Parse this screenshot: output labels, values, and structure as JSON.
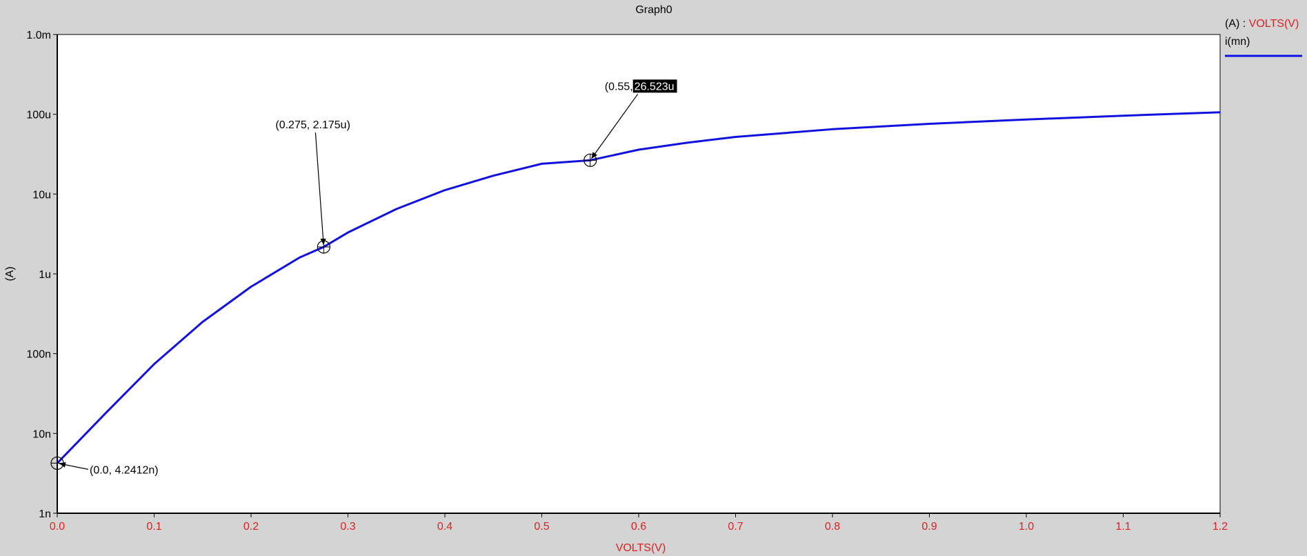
{
  "chart_data": {
    "type": "line",
    "title": "Graph0",
    "xlabel": "VOLTS(V)",
    "ylabel": "(A)",
    "xlim": [
      0,
      1.2
    ],
    "ylim": [
      1e-09,
      0.001
    ],
    "yscale": "log",
    "grid": false,
    "legend_position": "top-right",
    "x_ticks": [
      {
        "value": 0.0,
        "label": "0.0"
      },
      {
        "value": 0.1,
        "label": "0.1"
      },
      {
        "value": 0.2,
        "label": "0.2"
      },
      {
        "value": 0.3,
        "label": "0.3"
      },
      {
        "value": 0.4,
        "label": "0.4"
      },
      {
        "value": 0.5,
        "label": "0.5"
      },
      {
        "value": 0.6,
        "label": "0.6"
      },
      {
        "value": 0.7,
        "label": "0.7"
      },
      {
        "value": 0.8,
        "label": "0.8"
      },
      {
        "value": 0.9,
        "label": "0.9"
      },
      {
        "value": 1.0,
        "label": "1.0"
      },
      {
        "value": 1.1,
        "label": "1.1"
      },
      {
        "value": 1.2,
        "label": "1.2"
      }
    ],
    "y_ticks": [
      {
        "value": 0.001,
        "label": "1.0m"
      },
      {
        "value": 0.0001,
        "label": "100u"
      },
      {
        "value": 1e-05,
        "label": "10u"
      },
      {
        "value": 1e-06,
        "label": "1u"
      },
      {
        "value": 1e-07,
        "label": "100n"
      },
      {
        "value": 1e-08,
        "label": "10n"
      },
      {
        "value": 1e-09,
        "label": "1n"
      }
    ],
    "series": [
      {
        "name": "i(mn)",
        "color": "#1010e0",
        "x": [
          0.0,
          0.05,
          0.1,
          0.15,
          0.2,
          0.25,
          0.275,
          0.3,
          0.35,
          0.4,
          0.45,
          0.5,
          0.55,
          0.6,
          0.65,
          0.7,
          0.8,
          0.9,
          1.0,
          1.1,
          1.2
        ],
        "y": [
          4.2412e-09,
          1.8e-08,
          7.4e-08,
          2.5e-07,
          6.9e-07,
          1.6e-06,
          2.175e-06,
          3.3e-06,
          6.5e-06,
          1.12e-05,
          1.7e-05,
          2.4e-05,
          2.6523e-05,
          3.6e-05,
          4.4e-05,
          5.2e-05,
          6.5e-05,
          7.6e-05,
          8.6e-05,
          9.6e-05,
          0.000106
        ]
      }
    ],
    "legend": {
      "header_prefix": "(A) : ",
      "header_x_unit": "VOLTS(V)",
      "entries": [
        {
          "name": "i(mn)",
          "color": "#1010e0"
        }
      ]
    },
    "annotations": [
      {
        "x": 0.0,
        "y": 4.2412e-09,
        "label_prefix": "(0.0, 4.2412n)",
        "label_highlight": ""
      },
      {
        "x": 0.275,
        "y": 2.175e-06,
        "label_prefix": "(0.275, 2.175u)",
        "label_highlight": ""
      },
      {
        "x": 0.55,
        "y": 2.6523e-05,
        "label_prefix": "(0.55, ",
        "label_highlight": "26.523u"
      }
    ]
  },
  "colors": {
    "background": "#d4d4d4",
    "plot_background": "#ffffff",
    "axis_tick_label_x": "#e02020",
    "axis_tick_label_y": "#000000",
    "series": "#1010e0"
  }
}
